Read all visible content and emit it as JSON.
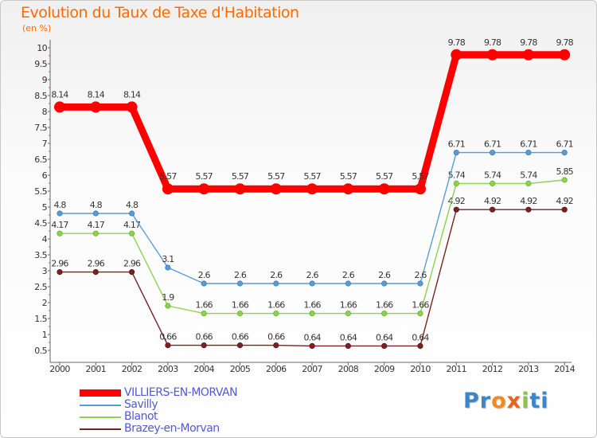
{
  "header": {
    "title": "Evolution du Taux de Taxe d'Habitation",
    "unit": "(en %)"
  },
  "logo": {
    "parts": [
      "Pr",
      "o",
      "x",
      "i",
      "ti"
    ],
    "colors": [
      "#3a86c8",
      "#f08c1e",
      "#e8641e",
      "#8cc63f",
      "#3a86c8"
    ]
  },
  "chart_data": {
    "type": "line",
    "title": "Evolution du Taux de Taxe d'Habitation",
    "ylabel": "(en %)",
    "xlabel": "",
    "x": [
      "2000",
      "2001",
      "2002",
      "2003",
      "2004",
      "2005",
      "2006",
      "2007",
      "2008",
      "2009",
      "2010",
      "2011",
      "2012",
      "2013",
      "2014"
    ],
    "ylim": [
      0.5,
      10
    ],
    "yticks": [
      "0.5",
      "1",
      "1.5",
      "2",
      "2.5",
      "3",
      "3.5",
      "4",
      "4.5",
      "5",
      "5.5",
      "6",
      "6.5",
      "7",
      "7.5",
      "8",
      "8.5",
      "9",
      "9.5",
      "10"
    ],
    "series": [
      {
        "name": "VILLIERS-EN-MORVAN",
        "color": "#ff0000",
        "values": [
          8.14,
          8.14,
          8.14,
          5.57,
          5.57,
          5.57,
          5.57,
          5.57,
          5.57,
          5.57,
          5.57,
          9.78,
          9.78,
          9.78,
          9.78
        ],
        "labels": [
          "8.14",
          "8.14",
          "8.14",
          "5.57",
          "5.57",
          "5.57",
          "5.57",
          "5.57",
          "5.57",
          "5.57",
          "5.57",
          "9.78",
          "9.78",
          "9.78",
          "9.78"
        ]
      },
      {
        "name": "Savilly",
        "color": "#5b9bd5",
        "values": [
          4.8,
          4.8,
          4.8,
          3.1,
          2.6,
          2.6,
          2.6,
          2.6,
          2.6,
          2.6,
          2.6,
          6.71,
          6.71,
          6.71,
          6.71
        ],
        "labels": [
          "4.8",
          "4.8",
          "4.8",
          "3.1",
          "2.6",
          "2.6",
          "2.6",
          "2.6",
          "2.6",
          "2.6",
          "2.6",
          "6.71",
          "6.71",
          "6.71",
          "6.71"
        ]
      },
      {
        "name": "Blanot",
        "color": "#8ed14f",
        "values": [
          4.17,
          4.17,
          4.17,
          1.9,
          1.66,
          1.66,
          1.66,
          1.66,
          1.66,
          1.66,
          1.66,
          5.74,
          5.74,
          5.74,
          5.85
        ],
        "labels": [
          "4.17",
          "4.17",
          "4.17",
          "1.9",
          "1.66",
          "1.66",
          "1.66",
          "1.66",
          "1.66",
          "1.66",
          "1.66",
          "5.74",
          "5.74",
          "5.74",
          "5.85"
        ]
      },
      {
        "name": "Brazey-en-Morvan",
        "color": "#7a2222",
        "values": [
          2.96,
          2.96,
          2.96,
          0.66,
          0.66,
          0.66,
          0.66,
          0.64,
          0.64,
          0.64,
          0.64,
          4.92,
          4.92,
          4.92,
          4.92
        ],
        "labels": [
          "2.96",
          "2.96",
          "2.96",
          "0.66",
          "0.66",
          "0.66",
          "0.66",
          "0.64",
          "0.64",
          "0.64",
          "0.64",
          "4.92",
          "4.92",
          "4.92",
          "4.92"
        ]
      }
    ],
    "legend": "bottom-left",
    "grid": false
  }
}
